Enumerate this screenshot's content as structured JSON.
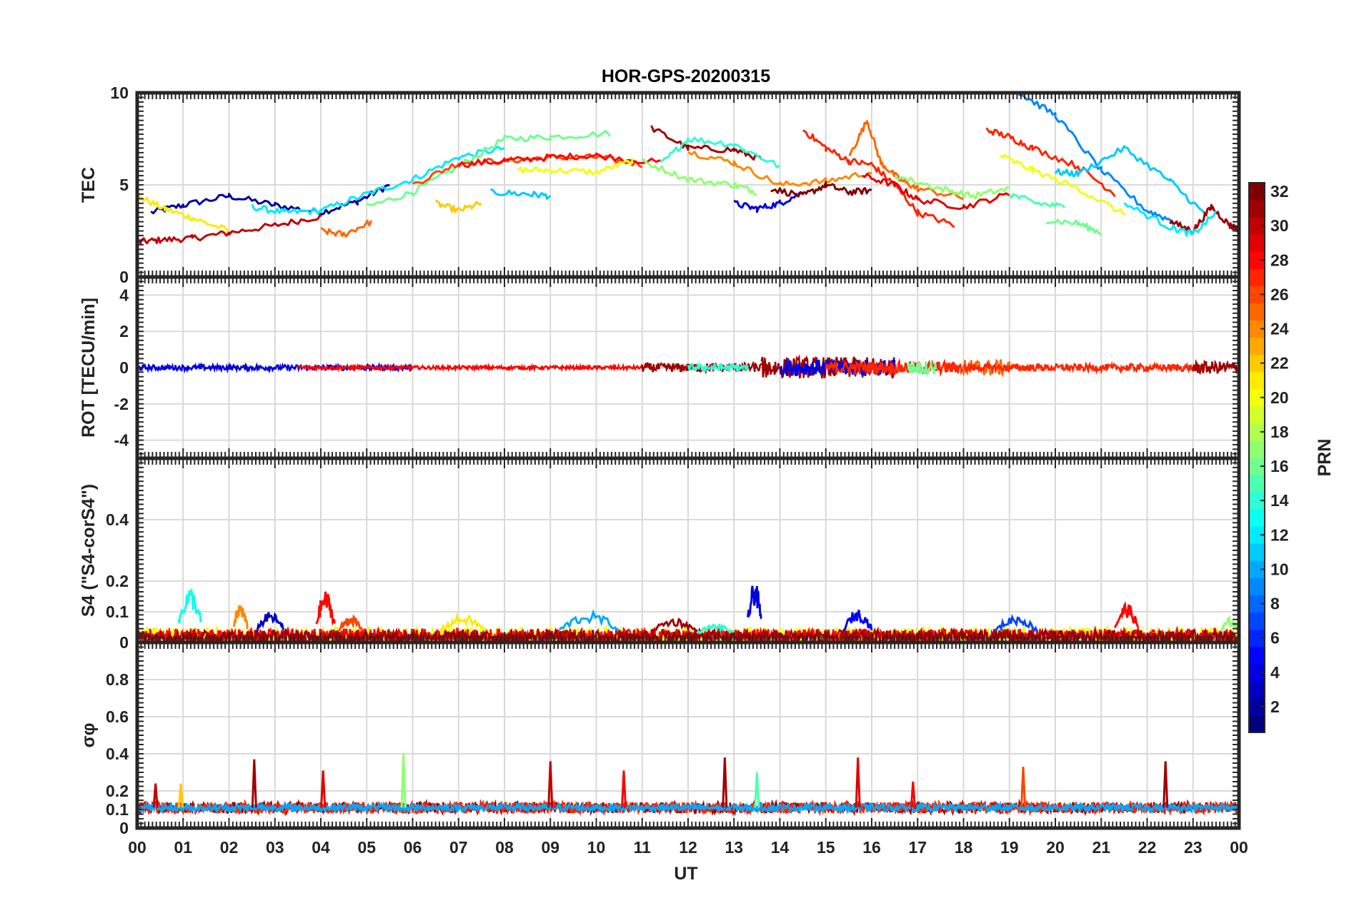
{
  "chart_data": {
    "type": "line",
    "title": "HOR-GPS-20200315",
    "xlabel": "UT",
    "x_ticks": [
      "00",
      "01",
      "02",
      "03",
      "04",
      "05",
      "06",
      "07",
      "08",
      "09",
      "10",
      "11",
      "12",
      "13",
      "14",
      "15",
      "16",
      "17",
      "18",
      "19",
      "20",
      "21",
      "22",
      "23",
      "00"
    ],
    "xlim": [
      0,
      24
    ],
    "grid": true,
    "colorbar": {
      "label": "PRN",
      "colormap": "jet",
      "range": [
        1,
        32
      ],
      "ticks": [
        "2",
        "4",
        "6",
        "8",
        "10",
        "12",
        "14",
        "16",
        "18",
        "20",
        "22",
        "24",
        "26",
        "28",
        "30",
        "32"
      ]
    },
    "panels": [
      {
        "id": "tec",
        "ylabel": "TEC",
        "ylim": [
          0,
          10
        ],
        "yticks": [
          "0",
          "5",
          "10"
        ],
        "series": [
          {
            "prn": 2,
            "x": [
              0.3,
              1,
              2,
              3,
              4,
              4.8,
              5.5
            ],
            "y": [
              3.5,
              3.9,
              4.4,
              3.9,
              3.5,
              4.1,
              5.0
            ]
          },
          {
            "prn": 30,
            "x": [
              0,
              0.5,
              1.2,
              2,
              3,
              4
            ],
            "y": [
              1.9,
              2.0,
              2.1,
              2.4,
              2.8,
              3.3
            ]
          },
          {
            "prn": 21,
            "x": [
              0,
              0.6,
              1.2,
              2.0
            ],
            "y": [
              4.4,
              3.7,
              3.2,
              2.5
            ]
          },
          {
            "prn": 12,
            "x": [
              2.5,
              3.2,
              4,
              5,
              6,
              7,
              8
            ],
            "y": [
              3.8,
              3.5,
              3.6,
              4.5,
              5.3,
              6.5,
              7.0
            ]
          },
          {
            "prn": 16,
            "x": [
              5,
              6,
              7,
              8,
              9,
              10.3
            ],
            "y": [
              3.8,
              4.6,
              6.0,
              7.5,
              7.6,
              7.8
            ]
          },
          {
            "prn": 26,
            "x": [
              6,
              7,
              8,
              9,
              10,
              11
            ],
            "y": [
              5.0,
              6.2,
              6.3,
              6.5,
              6.5,
              6.1
            ]
          },
          {
            "prn": 28,
            "x": [
              7,
              8,
              9,
              10,
              11.4
            ],
            "y": [
              6.1,
              6.3,
              6.5,
              6.6,
              6.2
            ]
          },
          {
            "prn": 20,
            "x": [
              8.3,
              9,
              10,
              10.8
            ],
            "y": [
              5.8,
              5.8,
              5.7,
              6.3
            ]
          },
          {
            "prn": 11,
            "x": [
              7.7,
              8.5,
              9
            ],
            "y": [
              4.6,
              4.5,
              4.4
            ]
          },
          {
            "prn": 22,
            "x": [
              6.5,
              7,
              7.5
            ],
            "y": [
              4.0,
              3.6,
              4.0
            ]
          },
          {
            "prn": 25,
            "x": [
              4,
              4.5,
              5.1
            ],
            "y": [
              2.5,
              2.3,
              3.0
            ]
          },
          {
            "prn": 31,
            "x": [
              11.2,
              12,
              13,
              13.6
            ],
            "y": [
              8.1,
              7.0,
              6.9,
              6.4
            ]
          },
          {
            "prn": 14,
            "x": [
              11.4,
              12,
              13,
              14
            ],
            "y": [
              6.1,
              7.5,
              7.2,
              6.0
            ]
          },
          {
            "prn": 17,
            "x": [
              11,
              12,
              13,
              13.5
            ],
            "y": [
              6.3,
              5.3,
              5.0,
              4.6
            ]
          },
          {
            "prn": 24,
            "x": [
              12,
              13,
              14,
              15,
              16
            ],
            "y": [
              6.8,
              6.2,
              5.0,
              5.2,
              5.7
            ]
          },
          {
            "prn": 4,
            "x": [
              13,
              13.5,
              14,
              14.5
            ],
            "y": [
              4.0,
              3.7,
              4.0,
              4.6
            ]
          },
          {
            "prn": 32,
            "x": [
              13.8,
              14.5,
              15,
              15.5,
              16
            ],
            "y": [
              4.8,
              4.4,
              5.0,
              4.6,
              4.7
            ]
          },
          {
            "prn": 27,
            "x": [
              14.5,
              15,
              15.5,
              16,
              16.5,
              17,
              17.8
            ],
            "y": [
              8.0,
              7.0,
              6.3,
              6.1,
              5.0,
              3.5,
              2.8
            ]
          },
          {
            "prn": 25,
            "x": [
              15.5,
              15.9,
              16.2,
              16.6,
              17,
              18
            ],
            "y": [
              6.5,
              8.5,
              6.2,
              5.3,
              4.8,
              4.3
            ]
          },
          {
            "prn": 29,
            "x": [
              15.8,
              16.5,
              17,
              18,
              19
            ],
            "y": [
              5.5,
              5.0,
              4.2,
              3.8,
              4.5
            ]
          },
          {
            "prn": 17,
            "x": [
              16.5,
              17.5,
              18.2,
              19
            ],
            "y": [
              5.5,
              4.8,
              4.4,
              4.8
            ]
          },
          {
            "prn": 27,
            "x": [
              18.5,
              19,
              19.5,
              20.5,
              21.3
            ],
            "y": [
              8.0,
              7.6,
              7.0,
              6.0,
              4.5
            ]
          },
          {
            "prn": 9,
            "x": [
              19.2,
              20,
              21,
              22,
              22.6
            ],
            "y": [
              10.0,
              8.8,
              5.8,
              3.6,
              3.0
            ]
          },
          {
            "prn": 11,
            "x": [
              20,
              20.5,
              21.5,
              22.5,
              23.3
            ],
            "y": [
              5.7,
              5.6,
              7.0,
              5.2,
              3.3
            ]
          },
          {
            "prn": 20,
            "x": [
              18.8,
              19.5,
              20.5,
              21.5
            ],
            "y": [
              6.6,
              5.8,
              4.8,
              3.4
            ]
          },
          {
            "prn": 15,
            "x": [
              19,
              19.6,
              20.2
            ],
            "y": [
              4.5,
              4.0,
              3.8
            ]
          },
          {
            "prn": 16,
            "x": [
              19.8,
              20.5,
              21
            ],
            "y": [
              3.1,
              2.9,
              2.4
            ]
          },
          {
            "prn": 31,
            "x": [
              22.5,
              23,
              23.4,
              23.8,
              24
            ],
            "y": [
              3.0,
              2.5,
              3.8,
              2.8,
              2.6
            ]
          },
          {
            "prn": 12,
            "x": [
              21.5,
              22.5,
              23,
              23.5
            ],
            "y": [
              4.0,
              2.7,
              2.3,
              3.5
            ]
          }
        ]
      },
      {
        "id": "rot",
        "ylabel": "ROT [TECU/min]",
        "ylim": [
          -5,
          5
        ],
        "yticks": [
          "4",
          "2",
          "0",
          "-2",
          "-4"
        ],
        "noise_segments": [
          {
            "prn": 4,
            "x0": 0,
            "x1": 6,
            "amp": 0.15
          },
          {
            "prn": 28,
            "x0": 3.5,
            "x1": 11,
            "amp": 0.1
          },
          {
            "prn": 31,
            "x0": 11,
            "x1": 13.6,
            "amp": 0.25
          },
          {
            "prn": 14,
            "x0": 12,
            "x1": 13.3,
            "amp": 0.2
          },
          {
            "prn": 31,
            "x0": 13.6,
            "x1": 16.5,
            "amp": 0.6
          },
          {
            "prn": 4,
            "x0": 14,
            "x1": 16.5,
            "amp": 0.45
          },
          {
            "prn": 27,
            "x0": 15,
            "x1": 18,
            "amp": 0.35
          },
          {
            "prn": 16,
            "x0": 16.8,
            "x1": 17.4,
            "amp": 0.4
          },
          {
            "prn": 25,
            "x0": 18,
            "x1": 19,
            "amp": 0.45
          },
          {
            "prn": 27,
            "x0": 18,
            "x1": 23.2,
            "amp": 0.2
          },
          {
            "prn": 31,
            "x0": 23,
            "x1": 24,
            "amp": 0.35
          }
        ]
      },
      {
        "id": "s4",
        "ylabel": "S4 (\"S4-corS4\")",
        "ylim": [
          0,
          0.6
        ],
        "yticks": [
          "0",
          "0.1",
          "0.2",
          "0.4"
        ],
        "noise_segments": [
          {
            "prn": 20,
            "x0": 0,
            "x1": 24,
            "amp": 0.03
          },
          {
            "prn": 28,
            "x0": 0,
            "x1": 24,
            "amp": 0.025
          },
          {
            "prn": 31,
            "x0": 0,
            "x1": 24,
            "amp": 0.02
          }
        ],
        "bursts": [
          {
            "prn": 13,
            "x0": 0.9,
            "x1": 1.4,
            "y": 0.18
          },
          {
            "prn": 24,
            "x0": 2.1,
            "x1": 2.4,
            "y": 0.13
          },
          {
            "prn": 3,
            "x0": 2.6,
            "x1": 3.2,
            "y": 0.1
          },
          {
            "prn": 28,
            "x0": 3.9,
            "x1": 4.3,
            "y": 0.17
          },
          {
            "prn": 26,
            "x0": 4.4,
            "x1": 4.9,
            "y": 0.09
          },
          {
            "prn": 21,
            "x0": 6.6,
            "x1": 7.6,
            "y": 0.09
          },
          {
            "prn": 10,
            "x0": 9.2,
            "x1": 10.5,
            "y": 0.1
          },
          {
            "prn": 31,
            "x0": 11.2,
            "x1": 12.2,
            "y": 0.08
          },
          {
            "prn": 14,
            "x0": 12.2,
            "x1": 13,
            "y": 0.06
          },
          {
            "prn": 4,
            "x0": 13.3,
            "x1": 13.6,
            "y": 0.2
          },
          {
            "prn": 5,
            "x0": 15.4,
            "x1": 16,
            "y": 0.11
          },
          {
            "prn": 7,
            "x0": 18.7,
            "x1": 19.6,
            "y": 0.09
          },
          {
            "prn": 28,
            "x0": 21.3,
            "x1": 21.8,
            "y": 0.13
          },
          {
            "prn": 17,
            "x0": 23.6,
            "x1": 24,
            "y": 0.08
          }
        ]
      },
      {
        "id": "sigma",
        "ylabel": "σφ",
        "ylim": [
          0,
          1
        ],
        "yticks": [
          "0",
          "0.1",
          "0.2",
          "0.4",
          "0.6",
          "0.8"
        ],
        "noise_segments": [
          {
            "prn": 31,
            "x0": 0,
            "x1": 24,
            "amp": 0.03
          },
          {
            "prn": 27,
            "x0": 0,
            "x1": 24,
            "amp": 0.03
          },
          {
            "prn": 10,
            "x0": 0,
            "x1": 24,
            "amp": 0.02
          }
        ],
        "spikes": [
          {
            "prn": 30,
            "x": 0.4,
            "y": 0.24
          },
          {
            "prn": 22,
            "x": 0.95,
            "y": 0.24
          },
          {
            "prn": 31,
            "x": 2.55,
            "y": 0.37
          },
          {
            "prn": 29,
            "x": 4.05,
            "y": 0.31
          },
          {
            "prn": 17,
            "x": 5.8,
            "y": 0.4
          },
          {
            "prn": 30,
            "x": 9.0,
            "y": 0.36
          },
          {
            "prn": 28,
            "x": 10.6,
            "y": 0.31
          },
          {
            "prn": 31,
            "x": 12.8,
            "y": 0.38
          },
          {
            "prn": 15,
            "x": 13.5,
            "y": 0.3
          },
          {
            "prn": 29,
            "x": 15.7,
            "y": 0.38
          },
          {
            "prn": 28,
            "x": 16.9,
            "y": 0.25
          },
          {
            "prn": 26,
            "x": 19.3,
            "y": 0.33
          },
          {
            "prn": 31,
            "x": 22.4,
            "y": 0.36
          }
        ]
      }
    ]
  }
}
